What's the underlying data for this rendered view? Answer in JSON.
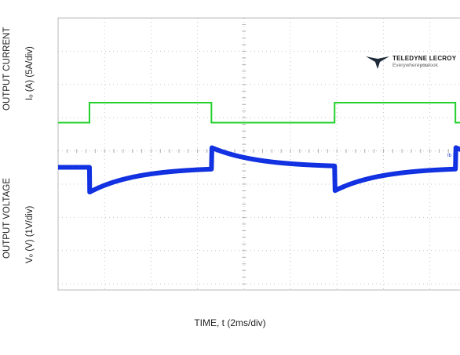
{
  "labels": {
    "current_title": "OUTPUT CURRENT",
    "current_units": "Iₒ (A) (5A/div)",
    "voltage_title": "OUTPUT VOLTAGE",
    "voltage_units": "Vₒ (V) (1V/div)",
    "time_axis": "TIME, t (2ms/div)"
  },
  "logo": {
    "brand": "TELEDYNE LECROY",
    "tagline_pre": "Everywhere",
    "tagline_bold": "you",
    "tagline_post": "look"
  },
  "badge": "Ib >>",
  "colors": {
    "current_trace": "#22d12b",
    "voltage_trace": "#1030e0",
    "grid": "#c4c4c4",
    "badge": "#1535d6"
  },
  "chart_data": {
    "type": "line",
    "title": "",
    "xlabel": "TIME, t (2ms/div)",
    "ylabel": "",
    "x_div": 2,
    "x_units": "ms",
    "xlim": [
      0,
      20
    ],
    "grid": true,
    "series": [
      {
        "name": "OUTPUT CURRENT",
        "units_per_div": "5A/div",
        "steps": [
          {
            "t": 0.0,
            "level": "low"
          },
          {
            "t": 1.35,
            "level": "high"
          },
          {
            "t": 6.6,
            "level": "low"
          },
          {
            "t": 11.9,
            "level": "high"
          },
          {
            "t": 17.1,
            "level": "low"
          }
        ],
        "step_size_div": 0.6
      },
      {
        "name": "OUTPUT VOLTAGE",
        "units_per_div": "1V/div",
        "load_step_on_times_ms": [
          1.35,
          11.9
        ],
        "load_step_off_times_ms": [
          6.6,
          17.1
        ],
        "undershoot_div": 0.75,
        "overshoot_div": 0.65,
        "recovery_time_constant_ms": 2.0
      }
    ]
  }
}
